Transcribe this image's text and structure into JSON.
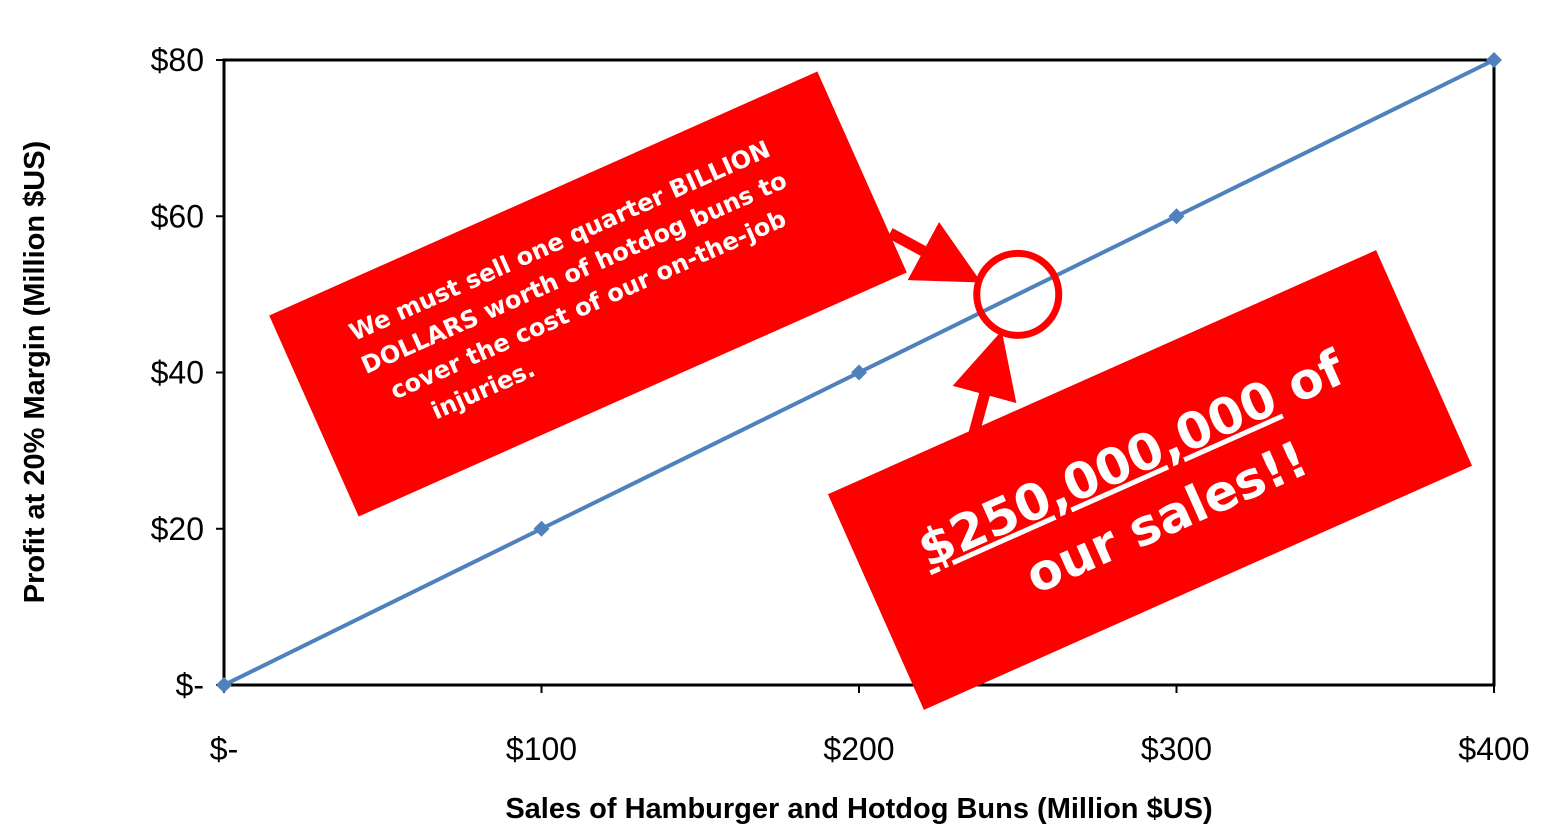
{
  "chart_data": {
    "type": "line",
    "xlabel": "Sales of Hamburger and Hotdog Buns (Million $US)",
    "ylabel": "Profit at 20% Margin (Million $US)",
    "x": [
      0,
      100,
      200,
      300,
      400
    ],
    "x_tick_labels": [
      "$-",
      "$100",
      "$200",
      "$300",
      "$400"
    ],
    "y_tick_values": [
      0,
      20,
      40,
      60,
      80
    ],
    "y_tick_labels": [
      "$-",
      "$20",
      "$40",
      "$60",
      "$80"
    ],
    "xlim": [
      0,
      400
    ],
    "ylim": [
      0,
      80
    ],
    "grid": false,
    "series": [
      {
        "values": [
          0,
          20,
          40,
          60,
          80
        ],
        "color": "#4f81bd",
        "marker": "diamond"
      }
    ],
    "annotations": {
      "callout_1": {
        "lines": [
          "We must sell one quarter BILLION",
          "DOLLARS worth of hotdog buns to",
          "cover the cost of our on-the-job",
          "injuries."
        ],
        "background": "#ff0000"
      },
      "callout_2": {
        "amount": "$250,000,000",
        "amount_suffix": " of",
        "line2": "our sales!!",
        "background": "#ff0000"
      },
      "highlight_circle": {
        "x": 250,
        "y": 50,
        "color": "#ff0000"
      }
    }
  }
}
